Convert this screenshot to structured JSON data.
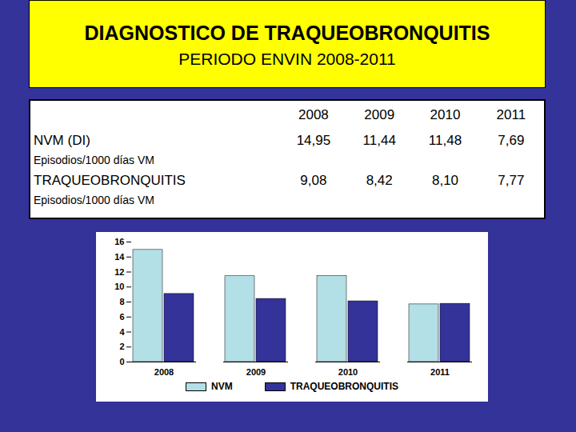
{
  "header": {
    "title": "DIAGNOSTICO DE TRAQUEOBRONQUITIS",
    "subtitle": "PERIODO ENVIN 2008-2011"
  },
  "table": {
    "columns": [
      "2008",
      "2009",
      "2010",
      "2011"
    ],
    "rows": [
      {
        "label": "NVM (DI)",
        "sublabel": "Episodios/1000 días VM",
        "cells": [
          "14,95",
          "11,44",
          "11,48",
          "7,69"
        ]
      },
      {
        "label": "TRAQUEOBRONQUITIS",
        "sublabel": "Episodios/1000 días VM",
        "cells": [
          "9,08",
          "8,42",
          "8,10",
          "7,77"
        ]
      }
    ]
  },
  "chart_data": {
    "type": "bar",
    "categories": [
      "2008",
      "2009",
      "2010",
      "2011"
    ],
    "series": [
      {
        "name": "NVM",
        "color": "#b3dfe6",
        "values": [
          14.95,
          11.44,
          11.48,
          7.69
        ]
      },
      {
        "name": "TRAQUEOBRONQUITIS",
        "color": "#333399",
        "values": [
          9.08,
          8.42,
          8.1,
          7.77
        ]
      }
    ],
    "ylim": [
      0,
      16
    ],
    "yticks": [
      0,
      2,
      4,
      6,
      8,
      10,
      12,
      14,
      16
    ],
    "grid": false,
    "legend": "bottom"
  }
}
